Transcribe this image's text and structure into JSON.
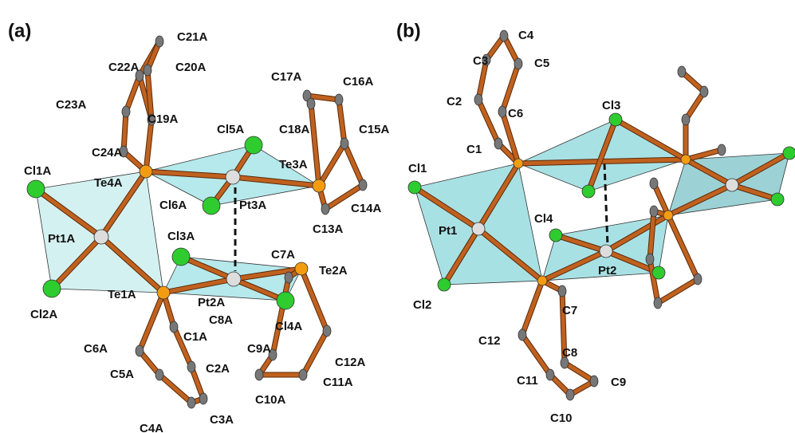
{
  "panels": [
    {
      "label": "(a)",
      "atoms": [
        "C21A",
        "C22A",
        "C20A",
        "C17A",
        "C16A",
        "C23A",
        "C19A",
        "Cl5A",
        "C18A",
        "C15A",
        "C24A",
        "Te3A",
        "Cl1A",
        "Te4A",
        "Cl6A",
        "Pt3A",
        "C14A",
        "C13A",
        "Pt1A",
        "Cl3A",
        "C7A",
        "Te2A",
        "Cl2A",
        "Te1A",
        "Pt2A",
        "Cl4A",
        "C8A",
        "C1A",
        "C6A",
        "C9A",
        "C12A",
        "C2A",
        "C11A",
        "C5A",
        "C10A",
        "C3A",
        "C4A"
      ]
    },
    {
      "label": "(b)",
      "atoms": [
        "C4",
        "C3",
        "C5",
        "C2",
        "C6",
        "Cl3",
        "C1",
        "Cl1",
        "Cl4",
        "Pt1",
        "Pt2",
        "Cl2",
        "C7",
        "C12",
        "C8",
        "C11",
        "C9",
        "C10"
      ]
    }
  ]
}
